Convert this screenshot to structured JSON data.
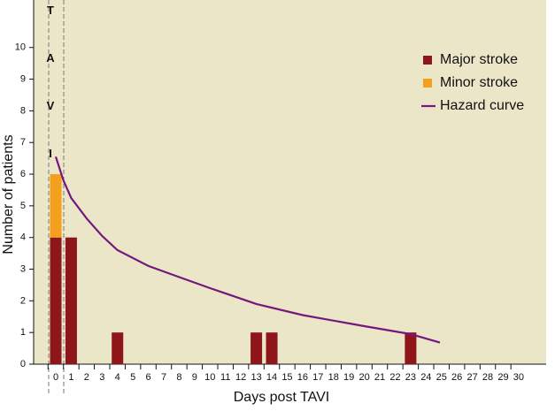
{
  "chart_data": {
    "type": "bar",
    "x_label": "Days post TAVI",
    "y_label": "Number of patients",
    "annotation": "TAVI",
    "categories": [
      "0",
      "1",
      "2",
      "3",
      "4",
      "5",
      "6",
      "7",
      "8",
      "9",
      "10",
      "11",
      "12",
      "13",
      "14",
      "15",
      "16",
      "17",
      "18",
      "19",
      "20",
      "21",
      "22",
      "23",
      "24",
      "25",
      "26",
      "27",
      "28",
      "29",
      "30"
    ],
    "series": [
      {
        "name": "Major stroke",
        "color": "#8e1519",
        "values": [
          4,
          4,
          0,
          0,
          1,
          0,
          0,
          0,
          0,
          0,
          0,
          0,
          0,
          1,
          1,
          0,
          0,
          0,
          0,
          0,
          0,
          0,
          0,
          1,
          0,
          0,
          0,
          0,
          0,
          0,
          0
        ]
      },
      {
        "name": "Minor stroke",
        "color": "#f5a01c",
        "values": [
          2,
          0,
          0,
          0,
          0,
          0,
          0,
          0,
          0,
          0,
          0,
          0,
          0,
          0,
          0,
          0,
          0,
          0,
          0,
          0,
          0,
          0,
          0,
          0,
          0,
          0,
          0,
          0,
          0,
          0,
          0
        ]
      }
    ],
    "line": {
      "name": "Hazard curve",
      "color": "#74177f",
      "x": [
        0,
        0.5,
        1,
        2,
        3,
        4,
        6,
        8,
        10,
        13,
        16,
        20,
        23,
        24.9
      ],
      "values": [
        6.55,
        5.8,
        5.25,
        4.6,
        4.05,
        3.6,
        3.1,
        2.75,
        2.4,
        1.9,
        1.55,
        1.2,
        0.95,
        0.68
      ]
    },
    "ylim": [
      0,
      11.5
    ],
    "yticks": [
      0,
      1,
      2,
      3,
      4,
      5,
      6,
      7,
      8,
      9,
      10
    ],
    "stacked": true,
    "grid": false,
    "legend": "upper right",
    "background": "#ece6c9"
  }
}
